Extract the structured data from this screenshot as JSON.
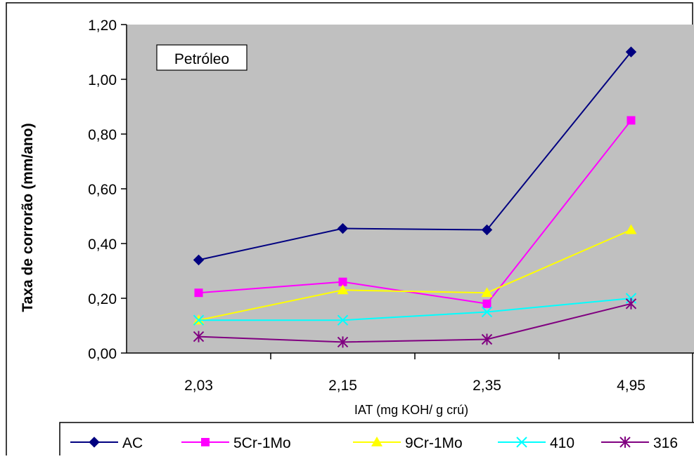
{
  "chart_data": {
    "type": "line",
    "title": "",
    "annotation": "Petróleo",
    "xlabel": "IAT (mg KOH/ g crú)",
    "ylabel": "Taxa de corrorão (mm/ano)",
    "categories": [
      "2,03",
      "2,15",
      "2,35",
      "4,95"
    ],
    "ylim": [
      0,
      1.2
    ],
    "yticks": [
      "0,00",
      "0,20",
      "0,40",
      "0,60",
      "0,80",
      "1,00",
      "1,20"
    ],
    "grid": false,
    "plot_background": "#c0c0c0",
    "legend_position": "bottom",
    "series": [
      {
        "name": "AC",
        "color": "#000080",
        "marker": "diamond",
        "values": [
          0.34,
          0.455,
          0.45,
          1.1
        ]
      },
      {
        "name": "5Cr-1Mo",
        "color": "#ff00ff",
        "marker": "square",
        "values": [
          0.22,
          0.26,
          0.18,
          0.85
        ]
      },
      {
        "name": "9Cr-1Mo",
        "color": "#ffff00",
        "marker": "triangle",
        "values": [
          0.12,
          0.23,
          0.22,
          0.45
        ]
      },
      {
        "name": "410",
        "color": "#00ffff",
        "marker": "x",
        "values": [
          0.12,
          0.12,
          0.15,
          0.2
        ]
      },
      {
        "name": "316",
        "color": "#800080",
        "marker": "star",
        "values": [
          0.06,
          0.04,
          0.05,
          0.18
        ]
      }
    ]
  }
}
